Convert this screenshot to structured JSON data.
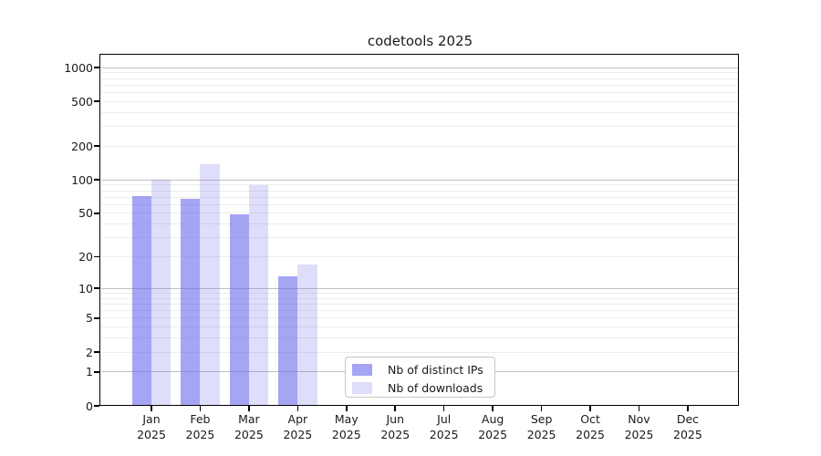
{
  "chart_data": {
    "type": "bar",
    "title": "codetools 2025",
    "year_label": "2025",
    "categories": [
      "Jan",
      "Feb",
      "Mar",
      "Apr",
      "May",
      "Jun",
      "Jul",
      "Aug",
      "Sep",
      "Oct",
      "Nov",
      "Dec"
    ],
    "series": [
      {
        "name": "Nb of distinct IPs",
        "color": "rgba(105,105,235,0.6)",
        "values": [
          71,
          68,
          49,
          13,
          null,
          null,
          null,
          null,
          null,
          null,
          null,
          null
        ]
      },
      {
        "name": "Nb of downloads",
        "color": "rgba(105,105,235,0.22)",
        "values": [
          100,
          139,
          90,
          17,
          null,
          null,
          null,
          null,
          null,
          null,
          null,
          null
        ]
      }
    ],
    "xlabel": "",
    "ylabel": "",
    "y_axis": {
      "scale": "log1p",
      "tick_values": [
        0,
        1,
        2,
        5,
        10,
        20,
        50,
        100,
        200,
        500,
        1000
      ],
      "major_gridline_values": [
        1,
        10,
        100,
        1000
      ],
      "ymax": 1300
    },
    "grid": true,
    "legend_position": "bottom-center-left"
  }
}
